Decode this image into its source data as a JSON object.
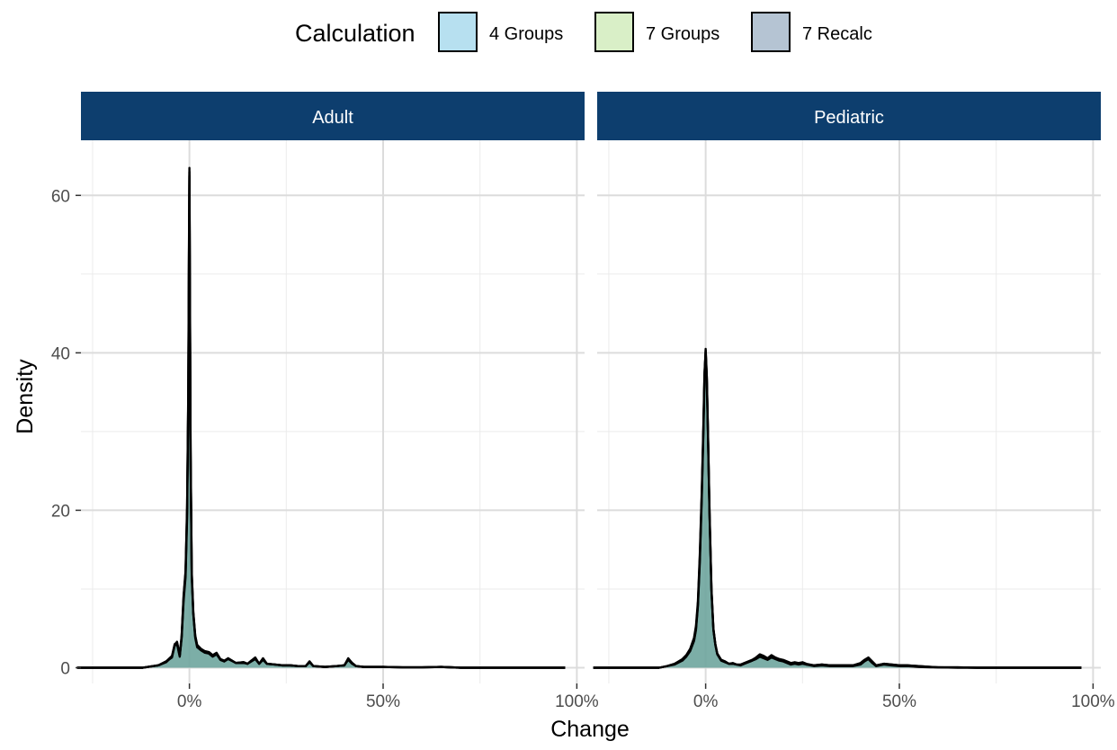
{
  "chart_data": {
    "type": "area",
    "subtype": "density",
    "xlabel": "Change",
    "ylabel": "Density",
    "x_ticks": [
      0,
      50,
      100
    ],
    "x_tick_labels": [
      "0%",
      "50%",
      "100%"
    ],
    "y_ticks": [
      0,
      20,
      40,
      60
    ],
    "y_tick_labels": [
      "0",
      "20",
      "40",
      "60"
    ],
    "xlim": [
      -28,
      102
    ],
    "ylim": [
      -2,
      67
    ],
    "grid": true,
    "legend": {
      "title": "Calculation",
      "placement": "top",
      "items": [
        {
          "label": "4 Groups",
          "color": "#b7e0f0"
        },
        {
          "label": "7 Groups",
          "color": "#d9efc7"
        },
        {
          "label": "7 Recalc",
          "color": "#b5c4d3"
        }
      ]
    },
    "overlap_fill": "#6fa59f",
    "line_color": "#000000",
    "strip_color": "#0d3e6e",
    "facets": [
      {
        "name": "Adult",
        "series": [
          {
            "name": "4 Groups",
            "x": [
              -29,
              -12,
              -8,
              -6,
              -4.5,
              -3.8,
              -3.2,
              -2.5,
              -2,
              -1.5,
              -1,
              -0.6,
              -0.3,
              -0.1,
              0,
              0.1,
              0.3,
              0.6,
              1,
              1.5,
              2,
              3,
              4,
              5,
              6,
              7,
              8,
              9,
              10,
              12,
              14,
              15,
              16,
              17,
              18,
              19,
              20,
              22,
              24,
              26,
              28,
              30,
              31,
              32,
              35,
              38,
              40,
              41,
              42,
              43,
              45,
              50,
              55,
              60,
              65,
              70,
              80,
              90,
              97
            ],
            "y": [
              0,
              0,
              0.3,
              0.8,
              1.5,
              3,
              3.2,
              1.5,
              4,
              9,
              12,
              20,
              35,
              55,
              63.5,
              52,
              28,
              12,
              7,
              4,
              2.8,
              2.3,
              2,
              1.9,
              1.5,
              1.8,
              1,
              0.8,
              1.2,
              0.6,
              0.7,
              0.5,
              0.9,
              1.2,
              0.5,
              1.1,
              0.5,
              0.4,
              0.3,
              0.3,
              0.2,
              0.2,
              0.8,
              0.2,
              0.1,
              0.2,
              0.3,
              1.1,
              0.6,
              0.2,
              0.1,
              0.1,
              0.05,
              0.05,
              0.1,
              0,
              0,
              0,
              0
            ]
          },
          {
            "name": "7 Groups",
            "x": [
              -29,
              -12,
              -8,
              -6,
              -4.5,
              -3.8,
              -3.2,
              -2.5,
              -2,
              -1.5,
              -1,
              -0.6,
              -0.3,
              -0.1,
              0,
              0.1,
              0.3,
              0.6,
              1,
              1.5,
              2,
              3,
              4,
              5,
              6,
              7,
              8,
              9,
              10,
              12,
              14,
              15,
              16,
              17,
              18,
              19,
              20,
              22,
              24,
              26,
              28,
              30,
              31,
              32,
              35,
              38,
              40,
              41,
              42,
              43,
              45,
              50,
              55,
              60,
              65,
              70,
              80,
              90,
              97
            ],
            "y": [
              0,
              0,
              0.3,
              0.7,
              1.4,
              2.8,
              3,
              1.4,
              3.8,
              8.5,
              11.5,
              19,
              33,
              53,
              62.5,
              50,
              27,
              11.5,
              6.8,
              3.8,
              2.6,
              2.2,
              1.9,
              1.8,
              1.4,
              1.7,
              1,
              0.8,
              1.1,
              0.6,
              0.6,
              0.5,
              0.8,
              1.1,
              0.5,
              1,
              0.5,
              0.4,
              0.3,
              0.3,
              0.2,
              0.2,
              0.7,
              0.2,
              0.1,
              0.2,
              0.3,
              1,
              0.5,
              0.2,
              0.1,
              0.1,
              0.05,
              0.05,
              0.1,
              0,
              0,
              0,
              0
            ]
          },
          {
            "name": "7 Recalc",
            "x": [
              -29,
              -12,
              -8,
              -6,
              -4.5,
              -3.8,
              -3.2,
              -2.5,
              -2,
              -1.5,
              -1,
              -0.6,
              -0.3,
              -0.1,
              0,
              0.1,
              0.3,
              0.6,
              1,
              1.5,
              2,
              3,
              4,
              5,
              6,
              7,
              8,
              9,
              10,
              12,
              14,
              15,
              16,
              17,
              18,
              19,
              20,
              22,
              24,
              26,
              28,
              30,
              31,
              32,
              35,
              38,
              40,
              41,
              42,
              43,
              45,
              50,
              55,
              60,
              65,
              70,
              80,
              90,
              97
            ],
            "y": [
              0,
              0,
              0.3,
              0.8,
              1.3,
              2.9,
              3.3,
              1.6,
              4.1,
              9.2,
              12.3,
              20.5,
              34,
              54,
              63,
              51,
              27.5,
              12.2,
              7.1,
              4.1,
              2.9,
              2.4,
              2.1,
              2,
              1.6,
              1.9,
              1.1,
              0.9,
              1.2,
              0.6,
              0.7,
              0.5,
              0.9,
              1.3,
              0.5,
              1.2,
              0.5,
              0.4,
              0.3,
              0.3,
              0.2,
              0.2,
              0.8,
              0.2,
              0.1,
              0.2,
              0.3,
              1.2,
              0.6,
              0.2,
              0.1,
              0.1,
              0.05,
              0.05,
              0.1,
              0,
              0,
              0,
              0
            ]
          }
        ]
      },
      {
        "name": "Pediatric",
        "series": [
          {
            "name": "4 Groups",
            "x": [
              -29,
              -12,
              -10,
              -8,
              -6,
              -5,
              -4,
              -3,
              -2.5,
              -2,
              -1.5,
              -1,
              -0.6,
              -0.3,
              0,
              0.3,
              0.6,
              1,
              1.5,
              2,
              2.5,
              3,
              4,
              5,
              6,
              7,
              8,
              9,
              10,
              11,
              12,
              13,
              14,
              15,
              16,
              17,
              18,
              19,
              20,
              21,
              22,
              23,
              24,
              25,
              26,
              28,
              30,
              32,
              35,
              38,
              40,
              41,
              42,
              43,
              44,
              46,
              48,
              50,
              52,
              55,
              58,
              60,
              65,
              70,
              80,
              90,
              97
            ],
            "y": [
              0,
              0,
              0.2,
              0.5,
              1,
              1.5,
              2.2,
              3.5,
              5,
              8,
              14,
              22,
              30,
              37,
              40.5,
              37,
              30,
              20,
              10,
              5,
              3,
              1.8,
              1,
              0.8,
              0.5,
              0.5,
              0.4,
              0.3,
              0.5,
              0.7,
              0.9,
              1.2,
              1.5,
              1.3,
              1.1,
              1.4,
              1.2,
              1,
              0.9,
              0.7,
              0.5,
              0.6,
              0.5,
              0.6,
              0.4,
              0.3,
              0.4,
              0.3,
              0.3,
              0.3,
              0.5,
              0.9,
              1.2,
              0.7,
              0.3,
              0.5,
              0.4,
              0.3,
              0.3,
              0.2,
              0.1,
              0.05,
              0.05,
              0,
              0,
              0,
              0
            ]
          },
          {
            "name": "7 Groups",
            "x": [
              -29,
              -12,
              -10,
              -8,
              -6,
              -5,
              -4,
              -3,
              -2.5,
              -2,
              -1.5,
              -1,
              -0.6,
              -0.3,
              0,
              0.3,
              0.6,
              1,
              1.5,
              2,
              2.5,
              3,
              4,
              5,
              6,
              7,
              8,
              9,
              10,
              11,
              12,
              13,
              14,
              15,
              16,
              17,
              18,
              19,
              20,
              21,
              22,
              23,
              24,
              25,
              26,
              28,
              30,
              32,
              35,
              38,
              40,
              41,
              42,
              43,
              44,
              46,
              48,
              50,
              52,
              55,
              58,
              60,
              65,
              70,
              80,
              90,
              97
            ],
            "y": [
              0,
              0,
              0.2,
              0.5,
              1.1,
              1.6,
              2.4,
              3.8,
              5.3,
              8.4,
              14.5,
              22.5,
              30.5,
              37.5,
              40,
              36.5,
              29.5,
              19.5,
              9.7,
              4.8,
              2.9,
              1.7,
              0.9,
              0.7,
              0.5,
              0.5,
              0.4,
              0.3,
              0.6,
              0.8,
              1,
              1.3,
              1.7,
              1.5,
              1.2,
              1.6,
              1.3,
              1.1,
              1,
              0.8,
              0.6,
              0.7,
              0.6,
              0.7,
              0.5,
              0.3,
              0.4,
              0.3,
              0.3,
              0.3,
              0.6,
              1,
              1.3,
              0.8,
              0.3,
              0.5,
              0.4,
              0.3,
              0.3,
              0.2,
              0.1,
              0.05,
              0.05,
              0,
              0,
              0,
              0
            ]
          },
          {
            "name": "7 Recalc",
            "x": [
              -29,
              -12,
              -10,
              -8,
              -6,
              -5,
              -4,
              -3,
              -2.5,
              -2,
              -1.5,
              -1,
              -0.6,
              -0.3,
              0,
              0.3,
              0.6,
              1,
              1.5,
              2,
              2.5,
              3,
              4,
              5,
              6,
              7,
              8,
              9,
              10,
              11,
              12,
              13,
              14,
              15,
              16,
              17,
              18,
              19,
              20,
              21,
              22,
              23,
              24,
              25,
              26,
              28,
              30,
              32,
              35,
              38,
              40,
              41,
              42,
              43,
              44,
              46,
              48,
              50,
              52,
              55,
              58,
              60,
              65,
              70,
              80,
              90,
              97
            ],
            "y": [
              0,
              0,
              0.2,
              0.4,
              0.9,
              1.4,
              2.1,
              3.4,
              4.8,
              7.8,
              13.5,
              21.5,
              29.5,
              36.5,
              40.3,
              36.8,
              29.8,
              19.8,
              9.9,
              4.9,
              3,
              1.8,
              1,
              0.8,
              0.5,
              0.6,
              0.4,
              0.4,
              0.6,
              0.7,
              0.9,
              1.1,
              1.4,
              1.2,
              1,
              1.3,
              1.1,
              0.9,
              0.8,
              0.6,
              0.4,
              0.5,
              0.4,
              0.5,
              0.4,
              0.2,
              0.3,
              0.2,
              0.2,
              0.2,
              0.4,
              0.8,
              1.1,
              0.6,
              0.2,
              0.4,
              0.3,
              0.2,
              0.2,
              0.1,
              0.05,
              0.05,
              0,
              0,
              0,
              0,
              0
            ]
          }
        ]
      }
    ]
  }
}
